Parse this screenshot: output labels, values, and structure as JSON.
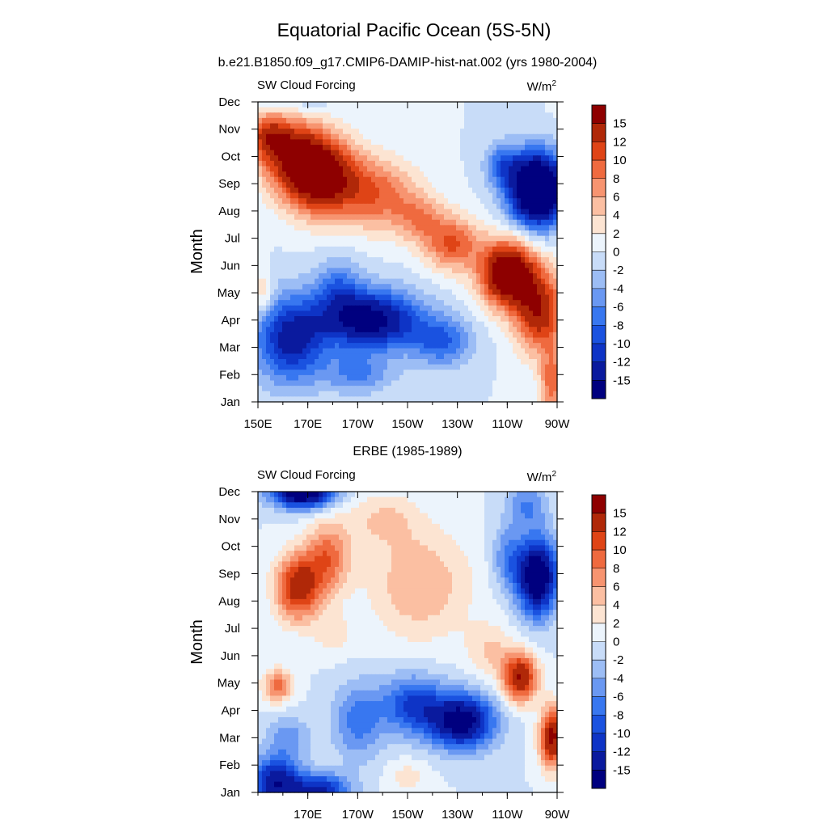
{
  "figure": {
    "title": "Equatorial Pacific Ocean (5S-5N)"
  },
  "chart_data": [
    {
      "type": "heatmap",
      "title": "b.e21.B1850.f09_g17.CMIP6-DAMIP-hist-nat.002 (yrs 1980-2004)",
      "left_label": "SW Cloud Forcing",
      "right_label": "W/m",
      "right_label_sup": "2",
      "ylabel": "Month",
      "x_tick_labels": [
        "150E",
        "170E",
        "170W",
        "150W",
        "130W",
        "110W",
        "90W"
      ],
      "x_ticks_lon": [
        150,
        170,
        190,
        210,
        230,
        250,
        270
      ],
      "xlim": [
        150,
        270
      ],
      "y_tick_labels": [
        "Jan",
        "Feb",
        "Mar",
        "Apr",
        "May",
        "Jun",
        "Jul",
        "Aug",
        "Sep",
        "Oct",
        "Nov",
        "Dec"
      ],
      "ylim": [
        1,
        12
      ],
      "levels": [
        -15,
        -12,
        -10,
        -8,
        -6,
        -4,
        -2,
        0,
        2,
        4,
        6,
        8,
        10,
        12,
        15
      ],
      "colorbar_labels": [
        "15",
        "12",
        "10",
        "8",
        "6",
        "4",
        "2",
        "0",
        "-2",
        "-4",
        "-6",
        "-8",
        "-10",
        "-12",
        "-15"
      ],
      "features": [
        {
          "lon": 174,
          "month": 9.3,
          "value": 19,
          "sx": 15,
          "sy": 1.4
        },
        {
          "lon": 162,
          "month": 10.3,
          "value": 10,
          "sx": 14,
          "sy": 1.2
        },
        {
          "lon": 198,
          "month": 8.6,
          "value": 9,
          "sx": 16,
          "sy": 1.3
        },
        {
          "lon": 154,
          "month": 10.8,
          "value": 8,
          "sx": 8,
          "sy": 0.8
        },
        {
          "lon": 250,
          "month": 5.7,
          "value": 20,
          "sx": 11,
          "sy": 1.2
        },
        {
          "lon": 263,
          "month": 4.3,
          "value": 14,
          "sx": 10,
          "sy": 1.5
        },
        {
          "lon": 228,
          "month": 6.8,
          "value": 10,
          "sx": 11,
          "sy": 1.0
        },
        {
          "lon": 215,
          "month": 7.7,
          "value": 6,
          "sx": 10,
          "sy": 0.9
        },
        {
          "lon": 268,
          "month": 1.7,
          "value": 9,
          "sx": 5,
          "sy": 1.2
        },
        {
          "lon": 262,
          "month": 8.8,
          "value": -26,
          "sx": 11,
          "sy": 1.3
        },
        {
          "lon": 248,
          "month": 9.7,
          "value": -7,
          "sx": 7,
          "sy": 0.8
        },
        {
          "lon": 195,
          "month": 4.0,
          "value": -17,
          "sx": 20,
          "sy": 1.1
        },
        {
          "lon": 163,
          "month": 3.3,
          "value": -13,
          "sx": 14,
          "sy": 1.6
        },
        {
          "lon": 224,
          "month": 3.2,
          "value": -8,
          "sx": 12,
          "sy": 0.9
        },
        {
          "lon": 190,
          "month": 2.0,
          "value": -6,
          "sx": 14,
          "sy": 0.7
        },
        {
          "lon": 182,
          "month": 5.2,
          "value": -6,
          "sx": 9,
          "sy": 1.1
        },
        {
          "lon": 152,
          "month": 5.0,
          "value": 5,
          "sx": 4,
          "sy": 0.8
        },
        {
          "lon": 168,
          "month": 12.0,
          "value": -2,
          "sx": 12,
          "sy": 0.4
        },
        {
          "lon": 258,
          "month": 12.0,
          "value": -2,
          "sx": 7,
          "sy": 0.4
        }
      ]
    },
    {
      "type": "heatmap",
      "title": "ERBE (1985-1989)",
      "left_label": "SW Cloud Forcing",
      "right_label": "W/m",
      "right_label_sup": "2",
      "ylabel": "Month",
      "x_tick_labels": [
        "170E",
        "170W",
        "150W",
        "130W",
        "110W",
        "90W"
      ],
      "x_ticks_lon": [
        170,
        190,
        210,
        230,
        250,
        270
      ],
      "xlim": [
        150,
        270
      ],
      "y_tick_labels": [
        "Jan",
        "Feb",
        "Mar",
        "Apr",
        "May",
        "Jun",
        "Jul",
        "Aug",
        "Sep",
        "Oct",
        "Nov",
        "Dec"
      ],
      "ylim": [
        1,
        12
      ],
      "levels": [
        -15,
        -12,
        -10,
        -8,
        -6,
        -4,
        -2,
        0,
        2,
        4,
        6,
        8,
        10,
        12,
        15
      ],
      "colorbar_labels": [
        "15",
        "12",
        "10",
        "8",
        "6",
        "4",
        "2",
        "0",
        "-2",
        "-4",
        "-6",
        "-8",
        "-10",
        "-12",
        "-15"
      ],
      "features": [
        {
          "lon": 168,
          "month": 12.0,
          "value": -20,
          "sx": 12,
          "sy": 0.6
        },
        {
          "lon": 157,
          "month": 1.4,
          "value": -14,
          "sx": 10,
          "sy": 0.9
        },
        {
          "lon": 175,
          "month": 1.1,
          "value": -12,
          "sx": 12,
          "sy": 0.6
        },
        {
          "lon": 262,
          "month": 8.9,
          "value": -20,
          "sx": 8,
          "sy": 1.4
        },
        {
          "lon": 250,
          "month": 9.6,
          "value": -6,
          "sx": 6,
          "sy": 1.2
        },
        {
          "lon": 232,
          "month": 3.6,
          "value": -17,
          "sx": 13,
          "sy": 1.0
        },
        {
          "lon": 212,
          "month": 4.2,
          "value": -10,
          "sx": 13,
          "sy": 1.1
        },
        {
          "lon": 190,
          "month": 3.6,
          "value": -7,
          "sx": 10,
          "sy": 1.4
        },
        {
          "lon": 162,
          "month": 3.0,
          "value": -5,
          "sx": 9,
          "sy": 0.8
        },
        {
          "lon": 166,
          "month": 8.5,
          "value": 14,
          "sx": 9,
          "sy": 1.2
        },
        {
          "lon": 178,
          "month": 9.6,
          "value": 9,
          "sx": 9,
          "sy": 1.3
        },
        {
          "lon": 158,
          "month": 4.9,
          "value": 9,
          "sx": 6,
          "sy": 0.6
        },
        {
          "lon": 215,
          "month": 8.6,
          "value": 6,
          "sx": 20,
          "sy": 2.0
        },
        {
          "lon": 200,
          "month": 11.0,
          "value": 4,
          "sx": 14,
          "sy": 1.0
        },
        {
          "lon": 255,
          "month": 5.2,
          "value": 15,
          "sx": 7,
          "sy": 0.9
        },
        {
          "lon": 268,
          "month": 3.0,
          "value": 16,
          "sx": 5,
          "sy": 1.1
        },
        {
          "lon": 243,
          "month": 6.2,
          "value": 4,
          "sx": 9,
          "sy": 1.0
        },
        {
          "lon": 180,
          "month": 6.8,
          "value": 3,
          "sx": 8,
          "sy": 0.8
        },
        {
          "lon": 210,
          "month": 1.6,
          "value": 3,
          "sx": 8,
          "sy": 0.6
        },
        {
          "lon": 258,
          "month": 11.5,
          "value": -6,
          "sx": 8,
          "sy": 0.8
        }
      ]
    }
  ],
  "colors": {
    "levels": [
      "#00007f",
      "#0a1a9e",
      "#0e34c6",
      "#1a52e0",
      "#3877f0",
      "#6a98f2",
      "#9cbdf5",
      "#c8dcf8",
      "#ecf4fc",
      "#fce4d2",
      "#fbbfa2",
      "#f79470",
      "#ef6a3f",
      "#df4416",
      "#b02808",
      "#8e0000"
    ]
  }
}
